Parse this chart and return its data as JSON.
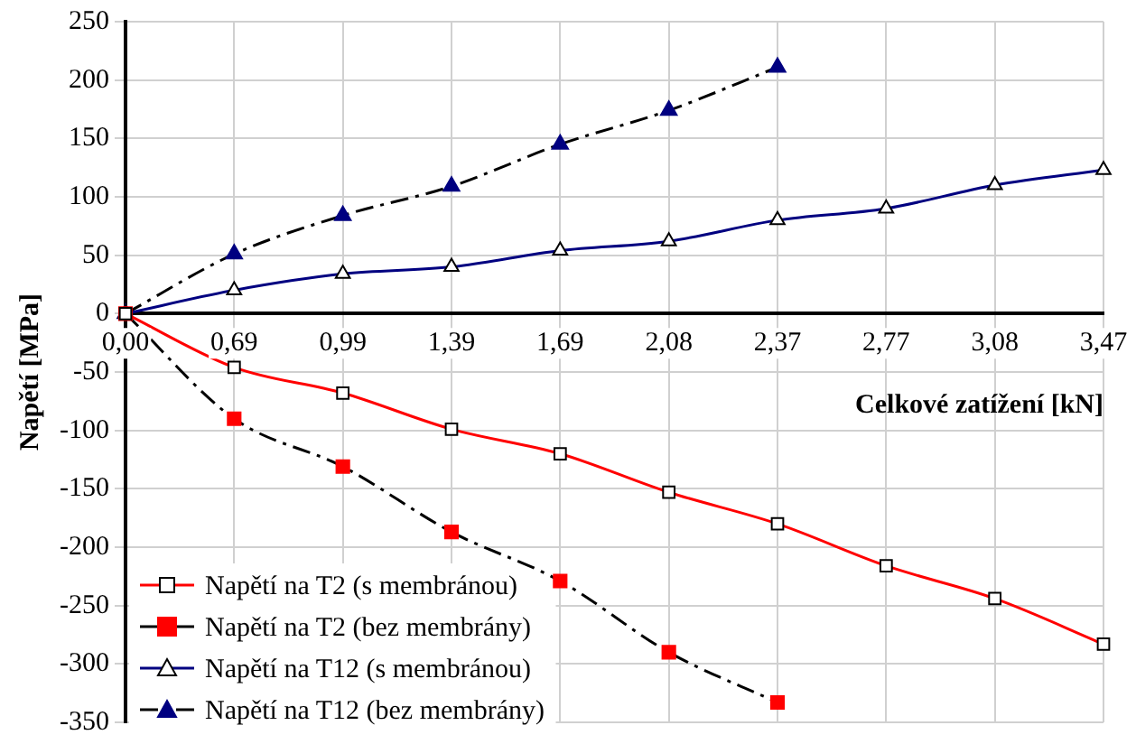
{
  "chart_data": {
    "type": "line",
    "xlabel": "Celkové zatížení [kN]",
    "ylabel": "Napětí [MPa]",
    "categories": [
      "0,00",
      "0,69",
      "0,99",
      "1,39",
      "1,69",
      "2,08",
      "2,37",
      "2,77",
      "3,08",
      "3,47"
    ],
    "ylim": [
      -350,
      250
    ],
    "yticks": [
      -350,
      -300,
      -250,
      -200,
      -150,
      -100,
      -50,
      0,
      50,
      100,
      150,
      200,
      250
    ],
    "grid": true,
    "legend": "bottom left",
    "series": [
      {
        "name": "Napětí na T2 (s membránou)",
        "color": "#ff0000",
        "marker": "square",
        "line_style": "solid",
        "values": [
          0,
          -46,
          -68,
          -99,
          -120,
          -153,
          -180,
          -216,
          -244,
          -283
        ]
      },
      {
        "name": "Napětí na T2 (bez membrány)",
        "color": "#ff0000",
        "marker": "square",
        "line_style": "dashed",
        "values": [
          0,
          -90,
          -131,
          -187,
          -229,
          -290,
          -333,
          null,
          null,
          null
        ]
      },
      {
        "name": "Napětí na T12 (s membránou)",
        "color": "#000080",
        "marker": "triangle",
        "line_style": "solid",
        "values": [
          0,
          20,
          34,
          40,
          54,
          62,
          80,
          90,
          110,
          123
        ]
      },
      {
        "name": "Napětí na T12 (bez membrány)",
        "color": "#000080",
        "marker": "triangle",
        "line_style": "dashed",
        "values": [
          0,
          51,
          84,
          109,
          145,
          174,
          211,
          null,
          null,
          null
        ]
      }
    ]
  }
}
